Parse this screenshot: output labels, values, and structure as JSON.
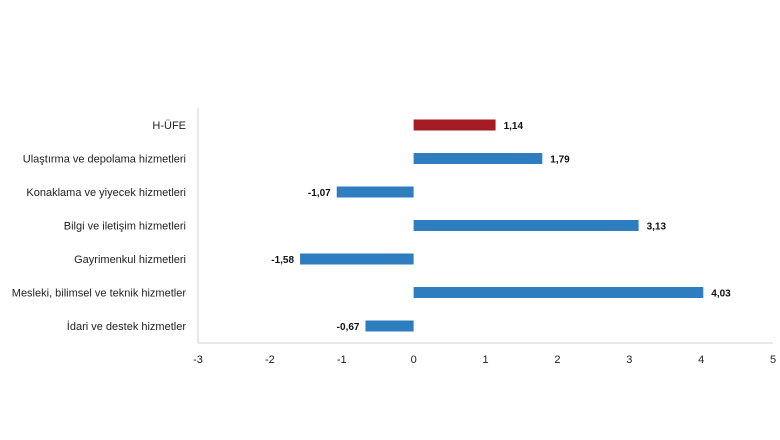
{
  "chart_data": {
    "type": "bar",
    "orientation": "horizontal",
    "categories": [
      "H-ÜFE",
      "Ulaştırma ve depolama hizmetleri",
      "Konaklama ve yiyecek hizmetleri",
      "Bilgi ve iletişim hizmetleri",
      "Gayrimenkul hizmetleri",
      "Mesleki, bilimsel ve teknik hizmetler",
      "İdari ve destek hizmetler"
    ],
    "values": [
      1.14,
      1.79,
      -1.07,
      3.13,
      -1.58,
      4.03,
      -0.67
    ],
    "value_labels": [
      "1,14",
      "1,79",
      "-1,07",
      "3,13",
      "-1,58",
      "4,03",
      "-0,67"
    ],
    "xlim": [
      -3,
      5
    ],
    "xticks": [
      -3,
      -2,
      -1,
      0,
      1,
      2,
      3,
      4,
      5
    ],
    "xtick_labels": [
      "-3",
      "-2",
      "-1",
      "0",
      "1",
      "2",
      "3",
      "4",
      "5"
    ],
    "title": "",
    "xlabel": "",
    "ylabel": "",
    "grid": false,
    "legend": "none",
    "colors": {
      "highlight": "#A51B22",
      "default": "#2E7EBF",
      "axis": "#d0d0d0"
    },
    "highlight_index": 0
  }
}
